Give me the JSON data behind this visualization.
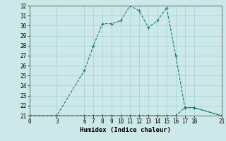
{
  "xlabel": "Humidex (Indice chaleur)",
  "line1_x": [
    0,
    3,
    6,
    7,
    8,
    9,
    10,
    11,
    12,
    13,
    14,
    15,
    16,
    17,
    18,
    21
  ],
  "line1_y": [
    21,
    21,
    21,
    21,
    21,
    21,
    21,
    21,
    21,
    21,
    21,
    21,
    21,
    21.8,
    21.8,
    21
  ],
  "line2_x": [
    0,
    3,
    6,
    7,
    8,
    9,
    10,
    11,
    12,
    13,
    14,
    15,
    16,
    17,
    18,
    21
  ],
  "line2_y": [
    21,
    21,
    25.5,
    28,
    30.2,
    30.2,
    30.5,
    32,
    31.5,
    29.8,
    30.5,
    31.8,
    27,
    21.8,
    21.8,
    21
  ],
  "line_color": "#1a7a6e",
  "marker": "+",
  "bg_color": "#cce8e8",
  "grid_color": "#b0d8d8",
  "ylim": [
    21,
    32
  ],
  "xlim": [
    0,
    21
  ],
  "yticks": [
    21,
    22,
    23,
    24,
    25,
    26,
    27,
    28,
    29,
    30,
    31,
    32
  ],
  "xticks": [
    0,
    3,
    6,
    7,
    8,
    9,
    10,
    11,
    12,
    13,
    14,
    15,
    16,
    17,
    18,
    21
  ],
  "tick_fontsize": 5.5,
  "xlabel_fontsize": 6.5
}
